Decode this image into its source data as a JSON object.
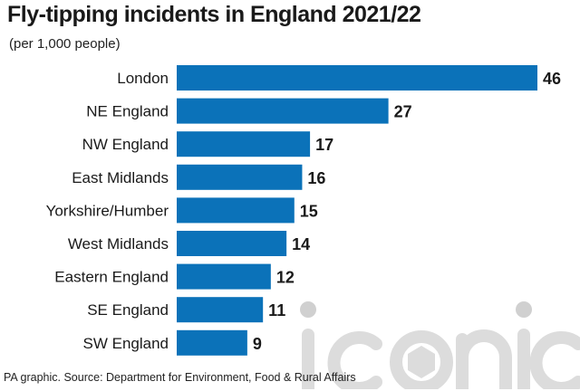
{
  "title": "Fly-tipping incidents in England 2021/22",
  "subtitle": "(per 1,000 people)",
  "footer": "PA graphic. Source: Department for Environment, Food & Rural Affairs",
  "watermark_text": "iconic",
  "colors": {
    "bar": "#0b72b9",
    "text": "#1a1a1a",
    "watermark": "#dcdcdc"
  },
  "chart_data": {
    "type": "bar",
    "orientation": "horizontal",
    "title": "Fly-tipping incidents in England 2021/22",
    "subtitle": "(per 1,000 people)",
    "categories": [
      "London",
      "NE England",
      "NW England",
      "East Midlands",
      "Yorkshire/Humber",
      "West Midlands",
      "Eastern England",
      "SE England",
      "SW England"
    ],
    "values": [
      46,
      27,
      17,
      16,
      15,
      14,
      12,
      11,
      9
    ],
    "xlim": [
      0,
      46
    ],
    "grid": false,
    "legend": "none"
  }
}
